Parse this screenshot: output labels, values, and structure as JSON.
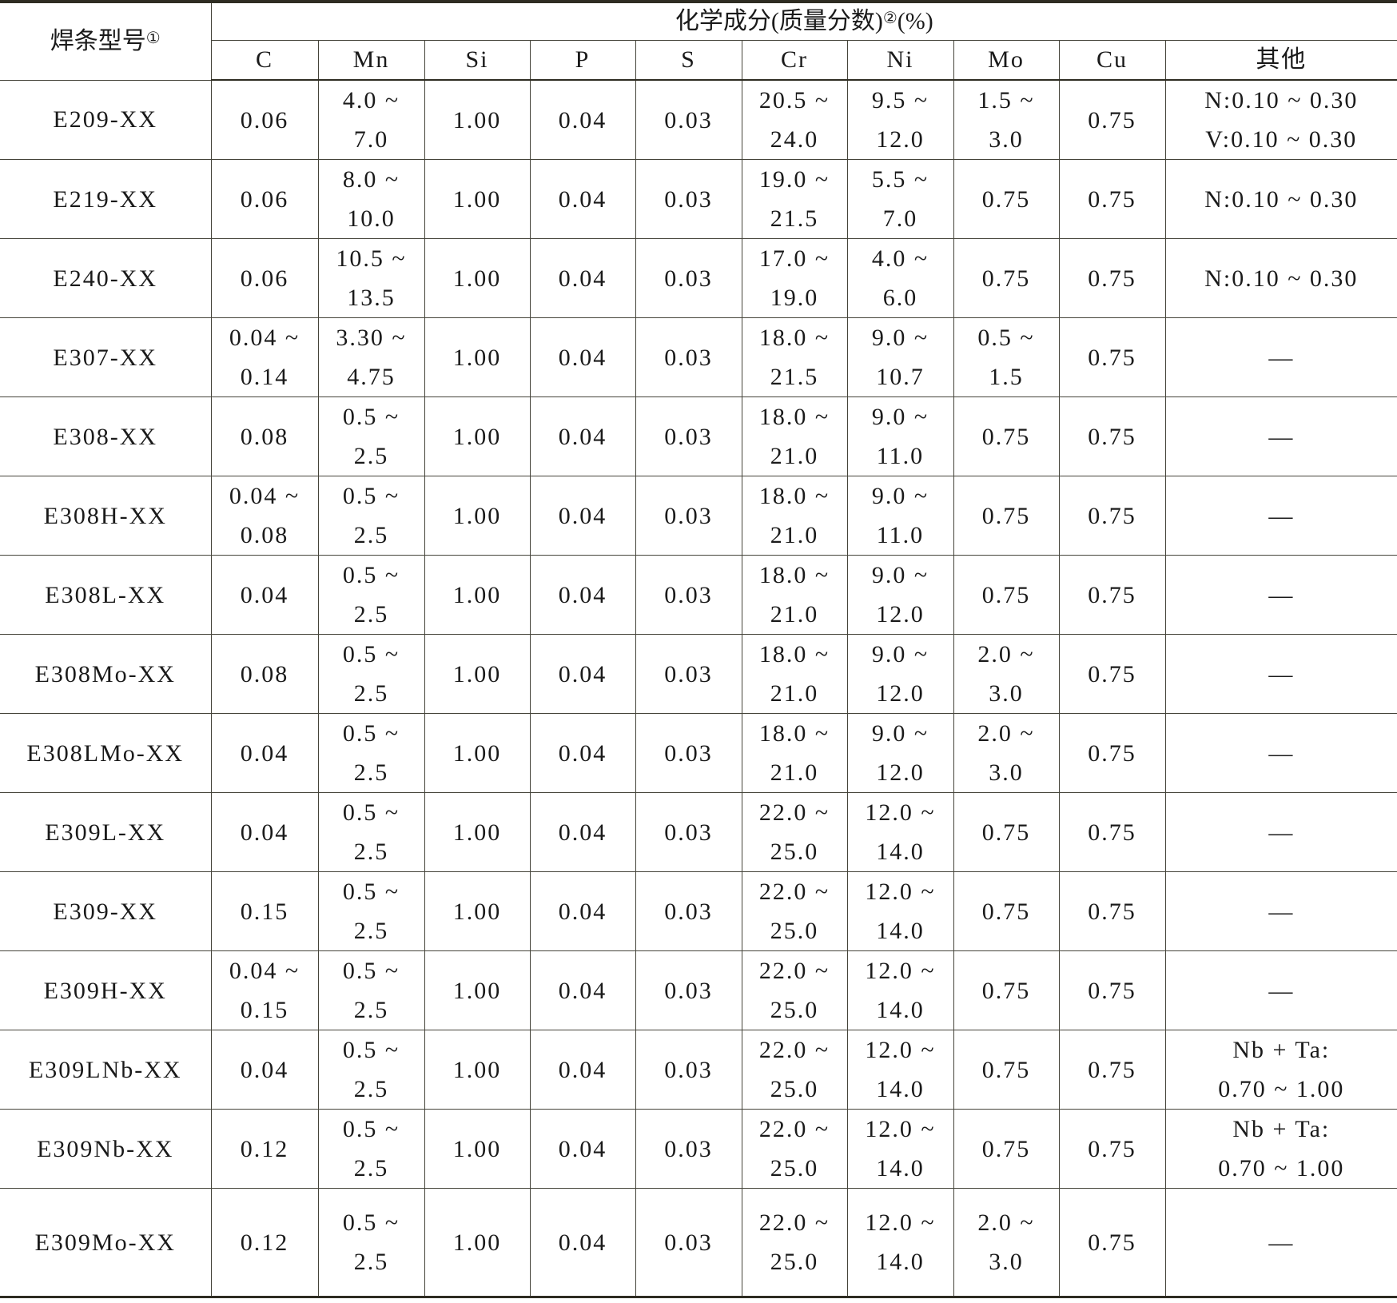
{
  "header": {
    "model_label": "焊条型号",
    "model_note": "①",
    "composition_label": "化学成分(质量分数)",
    "composition_note": "②",
    "composition_unit": "(%)",
    "columns": [
      "C",
      "Mn",
      "Si",
      "P",
      "S",
      "Cr",
      "Ni",
      "Mo",
      "Cu",
      "其他"
    ]
  },
  "rows": [
    {
      "model": "E209-XX",
      "cells": [
        [
          "0.06"
        ],
        [
          "4.0 ~",
          "7.0"
        ],
        [
          "1.00"
        ],
        [
          "0.04"
        ],
        [
          "0.03"
        ],
        [
          "20.5 ~",
          "24.0"
        ],
        [
          "9.5 ~",
          "12.0"
        ],
        [
          "1.5 ~",
          "3.0"
        ],
        [
          "0.75"
        ],
        [
          "N:0.10 ~ 0.30",
          "V:0.10 ~ 0.30"
        ]
      ]
    },
    {
      "model": "E219-XX",
      "cells": [
        [
          "0.06"
        ],
        [
          "8.0 ~",
          "10.0"
        ],
        [
          "1.00"
        ],
        [
          "0.04"
        ],
        [
          "0.03"
        ],
        [
          "19.0 ~",
          "21.5"
        ],
        [
          "5.5 ~",
          "7.0"
        ],
        [
          "0.75"
        ],
        [
          "0.75"
        ],
        [
          "N:0.10 ~ 0.30"
        ]
      ]
    },
    {
      "model": "E240-XX",
      "cells": [
        [
          "0.06"
        ],
        [
          "10.5 ~",
          "13.5"
        ],
        [
          "1.00"
        ],
        [
          "0.04"
        ],
        [
          "0.03"
        ],
        [
          "17.0 ~",
          "19.0"
        ],
        [
          "4.0 ~",
          "6.0"
        ],
        [
          "0.75"
        ],
        [
          "0.75"
        ],
        [
          "N:0.10 ~ 0.30"
        ]
      ]
    },
    {
      "model": "E307-XX",
      "cells": [
        [
          "0.04 ~",
          "0.14"
        ],
        [
          "3.30 ~",
          "4.75"
        ],
        [
          "1.00"
        ],
        [
          "0.04"
        ],
        [
          "0.03"
        ],
        [
          "18.0 ~",
          "21.5"
        ],
        [
          "9.0 ~",
          "10.7"
        ],
        [
          "0.5 ~",
          "1.5"
        ],
        [
          "0.75"
        ],
        [
          "—"
        ]
      ]
    },
    {
      "model": "E308-XX",
      "cells": [
        [
          "0.08"
        ],
        [
          "0.5 ~",
          "2.5"
        ],
        [
          "1.00"
        ],
        [
          "0.04"
        ],
        [
          "0.03"
        ],
        [
          "18.0 ~",
          "21.0"
        ],
        [
          "9.0 ~",
          "11.0"
        ],
        [
          "0.75"
        ],
        [
          "0.75"
        ],
        [
          "—"
        ]
      ]
    },
    {
      "model": "E308H-XX",
      "cells": [
        [
          "0.04 ~",
          "0.08"
        ],
        [
          "0.5 ~",
          "2.5"
        ],
        [
          "1.00"
        ],
        [
          "0.04"
        ],
        [
          "0.03"
        ],
        [
          "18.0 ~",
          "21.0"
        ],
        [
          "9.0 ~",
          "11.0"
        ],
        [
          "0.75"
        ],
        [
          "0.75"
        ],
        [
          "—"
        ]
      ]
    },
    {
      "model": "E308L-XX",
      "cells": [
        [
          "0.04"
        ],
        [
          "0.5 ~",
          "2.5"
        ],
        [
          "1.00"
        ],
        [
          "0.04"
        ],
        [
          "0.03"
        ],
        [
          "18.0 ~",
          "21.0"
        ],
        [
          "9.0 ~",
          "12.0"
        ],
        [
          "0.75"
        ],
        [
          "0.75"
        ],
        [
          "—"
        ]
      ]
    },
    {
      "model": "E308Mo-XX",
      "cells": [
        [
          "0.08"
        ],
        [
          "0.5 ~",
          "2.5"
        ],
        [
          "1.00"
        ],
        [
          "0.04"
        ],
        [
          "0.03"
        ],
        [
          "18.0 ~",
          "21.0"
        ],
        [
          "9.0 ~",
          "12.0"
        ],
        [
          "2.0 ~",
          "3.0"
        ],
        [
          "0.75"
        ],
        [
          "—"
        ]
      ]
    },
    {
      "model": "E308LMo-XX",
      "cells": [
        [
          "0.04"
        ],
        [
          "0.5 ~",
          "2.5"
        ],
        [
          "1.00"
        ],
        [
          "0.04"
        ],
        [
          "0.03"
        ],
        [
          "18.0 ~",
          "21.0"
        ],
        [
          "9.0 ~",
          "12.0"
        ],
        [
          "2.0 ~",
          "3.0"
        ],
        [
          "0.75"
        ],
        [
          "—"
        ]
      ]
    },
    {
      "model": "E309L-XX",
      "cells": [
        [
          "0.04"
        ],
        [
          "0.5 ~",
          "2.5"
        ],
        [
          "1.00"
        ],
        [
          "0.04"
        ],
        [
          "0.03"
        ],
        [
          "22.0 ~",
          "25.0"
        ],
        [
          "12.0 ~",
          "14.0"
        ],
        [
          "0.75"
        ],
        [
          "0.75"
        ],
        [
          "—"
        ]
      ]
    },
    {
      "model": "E309-XX",
      "cells": [
        [
          "0.15"
        ],
        [
          "0.5 ~",
          "2.5"
        ],
        [
          "1.00"
        ],
        [
          "0.04"
        ],
        [
          "0.03"
        ],
        [
          "22.0 ~",
          "25.0"
        ],
        [
          "12.0 ~",
          "14.0"
        ],
        [
          "0.75"
        ],
        [
          "0.75"
        ],
        [
          "—"
        ]
      ]
    },
    {
      "model": "E309H-XX",
      "cells": [
        [
          "0.04 ~",
          "0.15"
        ],
        [
          "0.5 ~",
          "2.5"
        ],
        [
          "1.00"
        ],
        [
          "0.04"
        ],
        [
          "0.03"
        ],
        [
          "22.0 ~",
          "25.0"
        ],
        [
          "12.0 ~",
          "14.0"
        ],
        [
          "0.75"
        ],
        [
          "0.75"
        ],
        [
          "—"
        ]
      ]
    },
    {
      "model": "E309LNb-XX",
      "cells": [
        [
          "0.04"
        ],
        [
          "0.5 ~",
          "2.5"
        ],
        [
          "1.00"
        ],
        [
          "0.04"
        ],
        [
          "0.03"
        ],
        [
          "22.0 ~",
          "25.0"
        ],
        [
          "12.0 ~",
          "14.0"
        ],
        [
          "0.75"
        ],
        [
          "0.75"
        ],
        [
          "Nb + Ta:",
          "0.70 ~ 1.00"
        ]
      ]
    },
    {
      "model": "E309Nb-XX",
      "cells": [
        [
          "0.12"
        ],
        [
          "0.5 ~",
          "2.5"
        ],
        [
          "1.00"
        ],
        [
          "0.04"
        ],
        [
          "0.03"
        ],
        [
          "22.0 ~",
          "25.0"
        ],
        [
          "12.0 ~",
          "14.0"
        ],
        [
          "0.75"
        ],
        [
          "0.75"
        ],
        [
          "Nb + Ta:",
          "0.70 ~ 1.00"
        ]
      ]
    },
    {
      "model": "E309Mo-XX",
      "cells": [
        [
          "0.12"
        ],
        [
          "0.5 ~",
          "2.5"
        ],
        [
          "1.00"
        ],
        [
          "0.04"
        ],
        [
          "0.03"
        ],
        [
          "22.0 ~",
          "25.0"
        ],
        [
          "12.0 ~",
          "14.0"
        ],
        [
          "2.0 ~",
          "3.0"
        ],
        [
          "0.75"
        ],
        [
          "—"
        ]
      ]
    }
  ]
}
